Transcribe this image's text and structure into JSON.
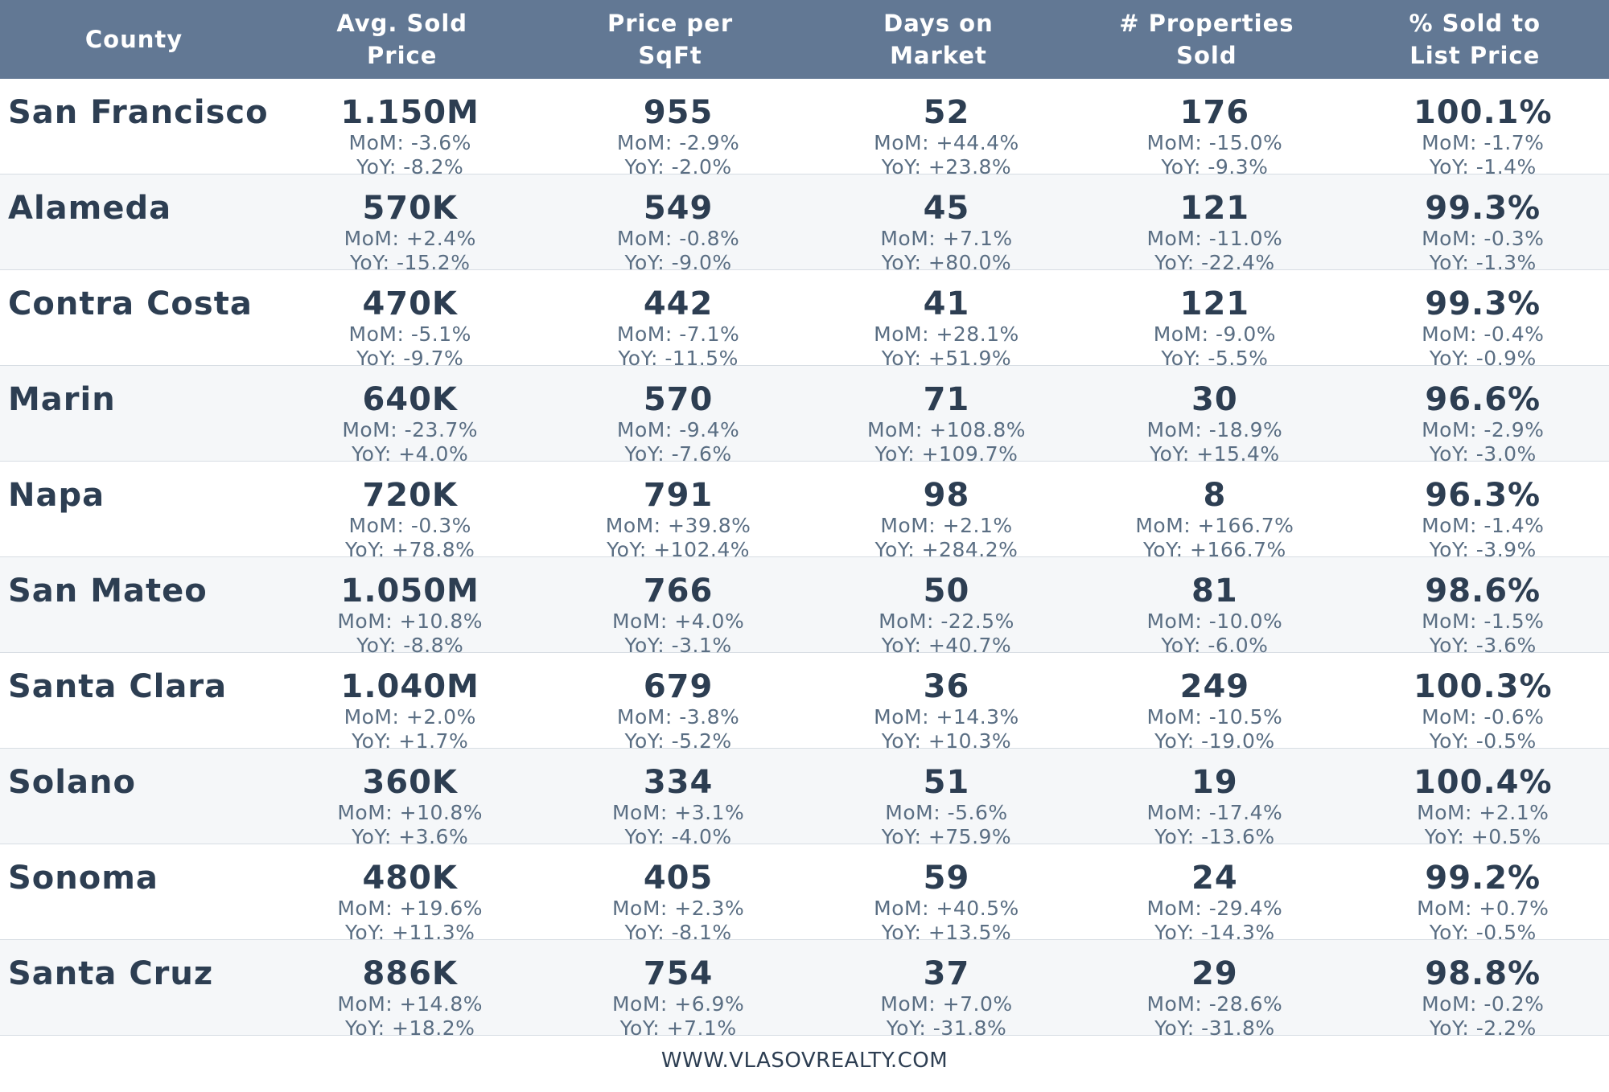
{
  "chart_data": {
    "type": "table",
    "columns": [
      "County",
      "Avg. Sold\nPrice",
      "Price per\nSqFt",
      "Days on\nMarket",
      "# Properties\nSold",
      "% Sold to\nList Price"
    ],
    "rows": [
      {
        "county": "San Francisco",
        "metrics": [
          {
            "value": "1.150M",
            "mom": "MoM: -3.6%",
            "yoy": "YoY: -8.2%"
          },
          {
            "value": "955",
            "mom": "MoM: -2.9%",
            "yoy": "YoY: -2.0%"
          },
          {
            "value": "52",
            "mom": "MoM: +44.4%",
            "yoy": "YoY: +23.8%"
          },
          {
            "value": "176",
            "mom": "MoM: -15.0%",
            "yoy": "YoY: -9.3%"
          },
          {
            "value": "100.1%",
            "mom": "MoM: -1.7%",
            "yoy": "YoY: -1.4%"
          }
        ]
      },
      {
        "county": "Alameda",
        "metrics": [
          {
            "value": "570K",
            "mom": "MoM: +2.4%",
            "yoy": "YoY: -15.2%"
          },
          {
            "value": "549",
            "mom": "MoM: -0.8%",
            "yoy": "YoY: -9.0%"
          },
          {
            "value": "45",
            "mom": "MoM: +7.1%",
            "yoy": "YoY: +80.0%"
          },
          {
            "value": "121",
            "mom": "MoM: -11.0%",
            "yoy": "YoY: -22.4%"
          },
          {
            "value": "99.3%",
            "mom": "MoM: -0.3%",
            "yoy": "YoY: -1.3%"
          }
        ]
      },
      {
        "county": "Contra Costa",
        "metrics": [
          {
            "value": "470K",
            "mom": "MoM: -5.1%",
            "yoy": "YoY: -9.7%"
          },
          {
            "value": "442",
            "mom": "MoM: -7.1%",
            "yoy": "YoY: -11.5%"
          },
          {
            "value": "41",
            "mom": "MoM: +28.1%",
            "yoy": "YoY: +51.9%"
          },
          {
            "value": "121",
            "mom": "MoM: -9.0%",
            "yoy": "YoY: -5.5%"
          },
          {
            "value": "99.3%",
            "mom": "MoM: -0.4%",
            "yoy": "YoY: -0.9%"
          }
        ]
      },
      {
        "county": "Marin",
        "metrics": [
          {
            "value": "640K",
            "mom": "MoM: -23.7%",
            "yoy": "YoY: +4.0%"
          },
          {
            "value": "570",
            "mom": "MoM: -9.4%",
            "yoy": "YoY: -7.6%"
          },
          {
            "value": "71",
            "mom": "MoM: +108.8%",
            "yoy": "YoY: +109.7%"
          },
          {
            "value": "30",
            "mom": "MoM: -18.9%",
            "yoy": "YoY: +15.4%"
          },
          {
            "value": "96.6%",
            "mom": "MoM: -2.9%",
            "yoy": "YoY: -3.0%"
          }
        ]
      },
      {
        "county": "Napa",
        "metrics": [
          {
            "value": "720K",
            "mom": "MoM: -0.3%",
            "yoy": "YoY: +78.8%"
          },
          {
            "value": "791",
            "mom": "MoM: +39.8%",
            "yoy": "YoY: +102.4%"
          },
          {
            "value": "98",
            "mom": "MoM: +2.1%",
            "yoy": "YoY: +284.2%"
          },
          {
            "value": "8",
            "mom": "MoM: +166.7%",
            "yoy": "YoY: +166.7%"
          },
          {
            "value": "96.3%",
            "mom": "MoM: -1.4%",
            "yoy": "YoY: -3.9%"
          }
        ]
      },
      {
        "county": "San Mateo",
        "metrics": [
          {
            "value": "1.050M",
            "mom": "MoM: +10.8%",
            "yoy": "YoY: -8.8%"
          },
          {
            "value": "766",
            "mom": "MoM: +4.0%",
            "yoy": "YoY: -3.1%"
          },
          {
            "value": "50",
            "mom": "MoM: -22.5%",
            "yoy": "YoY: +40.7%"
          },
          {
            "value": "81",
            "mom": "MoM: -10.0%",
            "yoy": "YoY: -6.0%"
          },
          {
            "value": "98.6%",
            "mom": "MoM: -1.5%",
            "yoy": "YoY: -3.6%"
          }
        ]
      },
      {
        "county": "Santa Clara",
        "metrics": [
          {
            "value": "1.040M",
            "mom": "MoM: +2.0%",
            "yoy": "YoY: +1.7%"
          },
          {
            "value": "679",
            "mom": "MoM: -3.8%",
            "yoy": "YoY: -5.2%"
          },
          {
            "value": "36",
            "mom": "MoM: +14.3%",
            "yoy": "YoY: +10.3%"
          },
          {
            "value": "249",
            "mom": "MoM: -10.5%",
            "yoy": "YoY: -19.0%"
          },
          {
            "value": "100.3%",
            "mom": "MoM: -0.6%",
            "yoy": "YoY: -0.5%"
          }
        ]
      },
      {
        "county": "Solano",
        "metrics": [
          {
            "value": "360K",
            "mom": "MoM: +10.8%",
            "yoy": "YoY: +3.6%"
          },
          {
            "value": "334",
            "mom": "MoM: +3.1%",
            "yoy": "YoY: -4.0%"
          },
          {
            "value": "51",
            "mom": "MoM: -5.6%",
            "yoy": "YoY: +75.9%"
          },
          {
            "value": "19",
            "mom": "MoM: -17.4%",
            "yoy": "YoY: -13.6%"
          },
          {
            "value": "100.4%",
            "mom": "MoM: +2.1%",
            "yoy": "YoY: +0.5%"
          }
        ]
      },
      {
        "county": "Sonoma",
        "metrics": [
          {
            "value": "480K",
            "mom": "MoM: +19.6%",
            "yoy": "YoY: +11.3%"
          },
          {
            "value": "405",
            "mom": "MoM: +2.3%",
            "yoy": "YoY: -8.1%"
          },
          {
            "value": "59",
            "mom": "MoM: +40.5%",
            "yoy": "YoY: +13.5%"
          },
          {
            "value": "24",
            "mom": "MoM: -29.4%",
            "yoy": "YoY: -14.3%"
          },
          {
            "value": "99.2%",
            "mom": "MoM: +0.7%",
            "yoy": "YoY: -0.5%"
          }
        ]
      },
      {
        "county": "Santa Cruz",
        "metrics": [
          {
            "value": "886K",
            "mom": "MoM: +14.8%",
            "yoy": "YoY: +18.2%"
          },
          {
            "value": "754",
            "mom": "MoM: +6.9%",
            "yoy": "YoY: +7.1%"
          },
          {
            "value": "37",
            "mom": "MoM: +7.0%",
            "yoy": "YoY: -31.8%"
          },
          {
            "value": "29",
            "mom": "MoM: -28.6%",
            "yoy": "YoY: -31.8%"
          },
          {
            "value": "98.8%",
            "mom": "MoM: -0.2%",
            "yoy": "YoY: -2.2%"
          }
        ]
      }
    ],
    "colors": {
      "header_bg": "#627894",
      "header_text": "#ffffff",
      "text": "#2d3e52",
      "subtext": "#5a6e83",
      "alt_row": "#f5f7f9"
    }
  },
  "footer": {
    "text": "WWW.VLASOVREALTY.COM"
  }
}
